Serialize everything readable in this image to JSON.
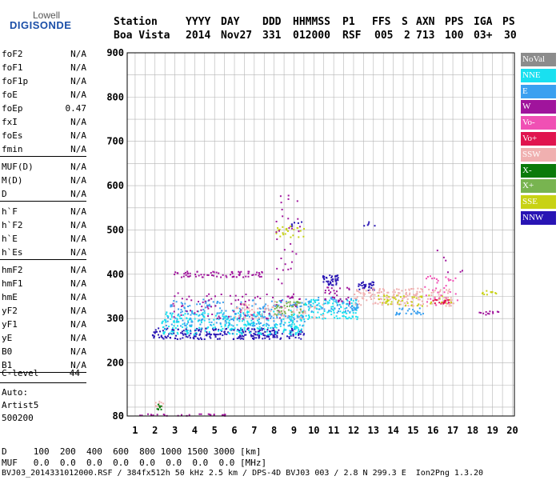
{
  "logo": {
    "line1": "Lowell",
    "line2": "DIGISONDE"
  },
  "header": {
    "labels": [
      "Station",
      "YYYY",
      "DAY",
      "DDD",
      "HHMMSS",
      "P1",
      "FFS",
      "S",
      "AXN",
      "PPS",
      "IGA",
      "PS"
    ],
    "values": [
      "Boa Vista",
      "2014",
      "Nov27",
      "331",
      "012000",
      "RSF",
      "005",
      "2",
      "713",
      "100",
      "03+",
      "30"
    ]
  },
  "params": {
    "group1": [
      {
        "name": "foF2",
        "value": "N/A"
      },
      {
        "name": "foF1",
        "value": "N/A"
      },
      {
        "name": "foF1p",
        "value": "N/A"
      },
      {
        "name": "foE",
        "value": "N/A"
      },
      {
        "name": "foEp",
        "value": "0.47"
      },
      {
        "name": "fxI",
        "value": "N/A"
      },
      {
        "name": "foEs",
        "value": "N/A"
      },
      {
        "name": "fmin",
        "value": "N/A"
      }
    ],
    "group2": [
      {
        "name": "MUF(D)",
        "value": "N/A"
      },
      {
        "name": "M(D)",
        "value": "N/A"
      },
      {
        "name": "D",
        "value": "N/A"
      }
    ],
    "group3": [
      {
        "name": "h`F",
        "value": "N/A"
      },
      {
        "name": "h`F2",
        "value": "N/A"
      },
      {
        "name": "h`E",
        "value": "N/A"
      },
      {
        "name": "h`Es",
        "value": "N/A"
      }
    ],
    "group4": [
      {
        "name": "hmF2",
        "value": "N/A"
      },
      {
        "name": "hmF1",
        "value": "N/A"
      },
      {
        "name": "hmE",
        "value": "N/A"
      },
      {
        "name": "yF2",
        "value": "N/A"
      },
      {
        "name": "yF1",
        "value": "N/A"
      },
      {
        "name": "yE",
        "value": "N/A"
      },
      {
        "name": "B0",
        "value": "N/A"
      },
      {
        "name": "B1",
        "value": "N/A"
      }
    ],
    "clevel": {
      "name": "C-level",
      "value": "44"
    }
  },
  "autoscale": {
    "line1": "Auto:",
    "line2": "Artist5",
    "line3": "500200"
  },
  "legend": [
    {
      "label": "NoVal",
      "color": "#8c8c8c"
    },
    {
      "label": "NNE",
      "color": "#19e0f0"
    },
    {
      "label": "E",
      "color": "#3aa0f0"
    },
    {
      "label": "W",
      "color": "#a0149c"
    },
    {
      "label": "Vo-",
      "color": "#f050b4"
    },
    {
      "label": "Vo+",
      "color": "#e0144e"
    },
    {
      "label": "SSW",
      "color": "#f0b0b0"
    },
    {
      "label": "X-",
      "color": "#0a7a0a"
    },
    {
      "label": "X+",
      "color": "#78b450"
    },
    {
      "label": "SSE",
      "color": "#c8d214"
    },
    {
      "label": "NNW",
      "color": "#2814b4"
    }
  ],
  "chart_data": {
    "type": "scatter",
    "xlabel": "",
    "ylabel": "",
    "xlim": [
      0.6,
      20.1
    ],
    "ylim": [
      80,
      900
    ],
    "x_ticks": [
      1,
      2,
      3,
      4,
      5,
      6,
      7,
      8,
      9,
      10,
      11,
      12,
      13,
      14,
      15,
      16,
      17,
      18,
      19,
      20
    ],
    "y_ticks": [
      200,
      300,
      400,
      500,
      600,
      700,
      800,
      900
    ],
    "y_tick_labels": [
      "200",
      "300",
      "400",
      "500",
      "600",
      "700",
      "800",
      "900"
    ],
    "y_extra_label": "80",
    "grid": true,
    "clusters": [
      {
        "series": "NNW",
        "x": [
          1.8,
          9.5
        ],
        "y": [
          255,
          280
        ],
        "count": 260
      },
      {
        "series": "NNE",
        "x": [
          2.3,
          9.6
        ],
        "y": [
          265,
          320
        ],
        "count": 320
      },
      {
        "series": "E",
        "x": [
          2.5,
          9.5
        ],
        "y": [
          285,
          345
        ],
        "count": 200
      },
      {
        "series": "W",
        "x": [
          2.8,
          7.5
        ],
        "y": [
          395,
          408
        ],
        "count": 70
      },
      {
        "series": "W",
        "x": [
          2.8,
          9.4
        ],
        "y": [
          300,
          360
        ],
        "count": 90
      },
      {
        "series": "SSW",
        "x": [
          6.0,
          10.5
        ],
        "y": [
          300,
          340
        ],
        "count": 80
      },
      {
        "series": "SSE",
        "x": [
          8.0,
          9.5
        ],
        "y": [
          485,
          510
        ],
        "count": 25
      },
      {
        "series": "X+",
        "x": [
          8.0,
          9.5
        ],
        "y": [
          310,
          340
        ],
        "count": 40
      },
      {
        "series": "NNE",
        "x": [
          9.5,
          12.2
        ],
        "y": [
          300,
          345
        ],
        "count": 110
      },
      {
        "series": "E",
        "x": [
          9.5,
          12.2
        ],
        "y": [
          315,
          350
        ],
        "count": 60
      },
      {
        "series": "NNW",
        "x": [
          10.4,
          11.2
        ],
        "y": [
          375,
          400
        ],
        "count": 40
      },
      {
        "series": "NNW",
        "x": [
          12.2,
          13.0
        ],
        "y": [
          365,
          385
        ],
        "count": 35
      },
      {
        "series": "W",
        "x": [
          10.5,
          11.8
        ],
        "y": [
          335,
          375
        ],
        "count": 30
      },
      {
        "series": "SSW",
        "x": [
          12.0,
          17.0
        ],
        "y": [
          330,
          370
        ],
        "count": 170
      },
      {
        "series": "E",
        "x": [
          14.0,
          15.5
        ],
        "y": [
          310,
          325
        ],
        "count": 25
      },
      {
        "series": "SSE",
        "x": [
          13.0,
          17.0
        ],
        "y": [
          330,
          355
        ],
        "count": 50
      },
      {
        "series": "Vo-",
        "x": [
          15.5,
          17.2
        ],
        "y": [
          330,
          400
        ],
        "count": 35
      },
      {
        "series": "W",
        "x": [
          18.3,
          19.3
        ],
        "y": [
          310,
          318
        ],
        "count": 12
      },
      {
        "series": "SSE",
        "x": [
          18.4,
          19.3
        ],
        "y": [
          355,
          365
        ],
        "count": 10
      },
      {
        "series": "Vo+",
        "x": [
          15.8,
          16.8
        ],
        "y": [
          335,
          345
        ],
        "count": 15
      },
      {
        "series": "NNW",
        "x": [
          8.8,
          9.4
        ],
        "y": [
          510,
          520
        ],
        "count": 6
      },
      {
        "series": "NNW",
        "x": [
          12.4,
          13.1
        ],
        "y": [
          510,
          520
        ],
        "count": 5
      },
      {
        "series": "SSW",
        "x": [
          1.9,
          2.4
        ],
        "y": [
          100,
          115
        ],
        "count": 10
      },
      {
        "series": "X-",
        "x": [
          1.9,
          2.3
        ],
        "y": [
          95,
          108
        ],
        "count": 8
      },
      {
        "series": "W",
        "x": [
          1.2,
          5.5
        ],
        "y": [
          82,
          86
        ],
        "count": 25
      },
      {
        "series": "W",
        "x": [
          8.0,
          9.3
        ],
        "y": [
          380,
          580
        ],
        "count": 30
      },
      {
        "series": "W",
        "x": [
          16.0,
          17.5
        ],
        "y": [
          400,
          460
        ],
        "count": 6
      }
    ]
  },
  "footer": {
    "line1": "D     100  200  400  600  800 1000 1500 3000 [km]",
    "line2": "MUF   0.0  0.0  0.0  0.0  0.0  0.0  0.0  0.0 [MHz]",
    "line3": "BVJ03_2014331012000.RSF / 384fx512h 50 kHz 2.5 km / DPS-4D BVJ03 003 / 2.8 N 299.3 E  Ion2Png 1.3.20"
  }
}
